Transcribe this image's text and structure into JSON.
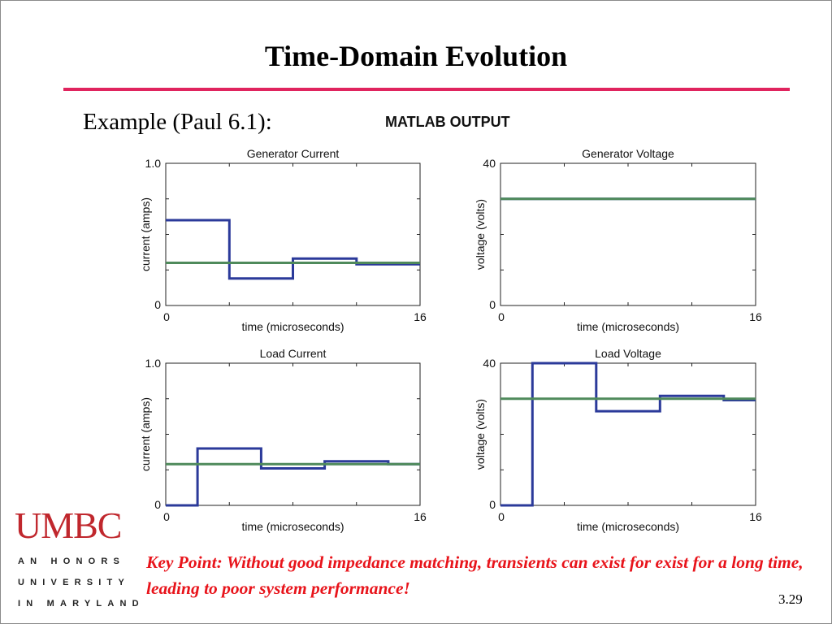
{
  "slide": {
    "title": "Time-Domain Evolution",
    "subtitle": "Example (Paul 6.1):",
    "matlab_label": "MATLAB OUTPUT",
    "key_point": "Key Point:  Without good impedance  matching, transients can exist for exist for a long time, leading to poor system performance!",
    "page_number": "3.29",
    "accent_color": "#e0245e"
  },
  "logo": {
    "name": "UMBC",
    "tagline": [
      "AN HONORS",
      "UNIVERSITY",
      "IN MARYLAND"
    ],
    "color": "#c0272d"
  },
  "chart_data": [
    {
      "type": "line",
      "title": "Generator Current",
      "xlabel": "time (microseconds)",
      "ylabel": "current (amps)",
      "xlim": [
        0,
        16
      ],
      "ylim": [
        0,
        1.0
      ],
      "xtick_labels": [
        "0",
        "16"
      ],
      "ytick_labels": [
        "0",
        "1.0"
      ],
      "series": [
        {
          "color": "#2b3a9a",
          "step": true,
          "x": [
            0,
            4,
            8,
            12,
            16
          ],
          "y": [
            0.6,
            0.19,
            0.33,
            0.29,
            0.29
          ]
        },
        {
          "color": "#4f8a5b",
          "step": false,
          "x": [
            0,
            16
          ],
          "y": [
            0.3,
            0.3
          ]
        }
      ]
    },
    {
      "type": "line",
      "title": "Generator Voltage",
      "xlabel": "time (microseconds)",
      "ylabel": "voltage (volts)",
      "xlim": [
        0,
        16
      ],
      "ylim": [
        0,
        40
      ],
      "xtick_labels": [
        "0",
        "16"
      ],
      "ytick_labels": [
        "0",
        "40"
      ],
      "series": [
        {
          "color": "#2b3a9a",
          "step": true,
          "x": [
            0,
            16
          ],
          "y": [
            30,
            30
          ]
        },
        {
          "color": "#4f8a5b",
          "step": false,
          "x": [
            0,
            16
          ],
          "y": [
            30,
            30
          ]
        }
      ]
    },
    {
      "type": "line",
      "title": "Load Current",
      "xlabel": "time (microseconds)",
      "ylabel": "current (amps)",
      "xlim": [
        0,
        16
      ],
      "ylim": [
        0,
        1.0
      ],
      "xtick_labels": [
        "0",
        "16"
      ],
      "ytick_labels": [
        "0",
        "1.0"
      ],
      "series": [
        {
          "color": "#2b3a9a",
          "step": true,
          "x": [
            0,
            2,
            6,
            10,
            14,
            16
          ],
          "y": [
            0,
            0.4,
            0.26,
            0.31,
            0.29,
            0.29
          ]
        },
        {
          "color": "#4f8a5b",
          "step": false,
          "x": [
            0,
            16
          ],
          "y": [
            0.29,
            0.29
          ]
        }
      ]
    },
    {
      "type": "line",
      "title": "Load Voltage",
      "xlabel": "time (microseconds)",
      "ylabel": "voltage (volts)",
      "xlim": [
        0,
        16
      ],
      "ylim": [
        0,
        40
      ],
      "xtick_labels": [
        "0",
        "16"
      ],
      "ytick_labels": [
        "0",
        "40"
      ],
      "series": [
        {
          "color": "#2b3a9a",
          "step": true,
          "x": [
            0,
            2,
            6,
            10,
            14,
            16
          ],
          "y": [
            0,
            40,
            26.5,
            30.8,
            29.6,
            29.6
          ]
        },
        {
          "color": "#4f8a5b",
          "step": false,
          "x": [
            0,
            16
          ],
          "y": [
            30,
            30
          ]
        }
      ]
    }
  ]
}
